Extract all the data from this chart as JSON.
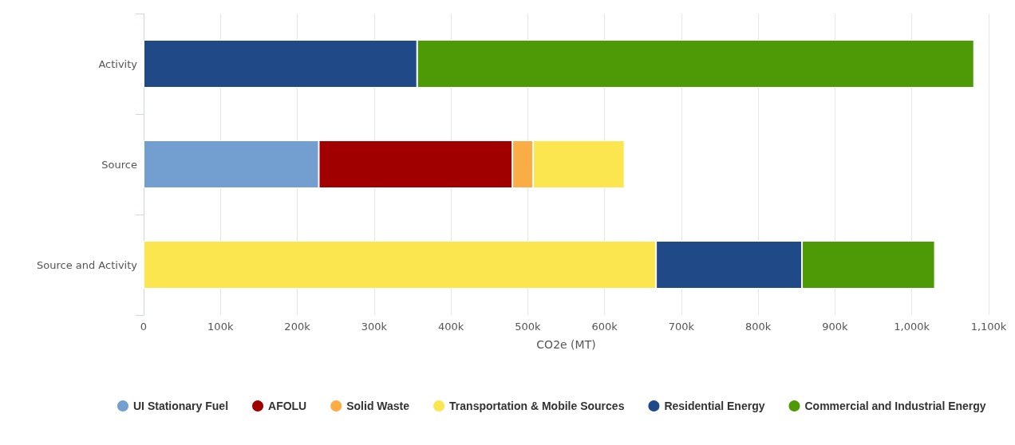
{
  "chart_data": {
    "type": "bar",
    "orientation": "horizontal",
    "stacked": true,
    "xlabel": "CO2e (MT)",
    "categories": [
      "Activity",
      "Source",
      "Source and Activity"
    ],
    "series": [
      {
        "name": "UI Stationary Fuel",
        "color": "#729fcf",
        "values": [
          null,
          228000,
          null
        ]
      },
      {
        "name": "AFOLU",
        "color": "#a00000",
        "values": [
          null,
          252000,
          null
        ]
      },
      {
        "name": "Solid Waste",
        "color": "#fbad45",
        "values": [
          null,
          27000,
          null
        ]
      },
      {
        "name": "Transportation & Mobile Sources",
        "color": "#fce650",
        "values": [
          null,
          119000,
          667000
        ]
      },
      {
        "name": "Residential Energy",
        "color": "#204a87",
        "values": [
          356000,
          null,
          190000
        ]
      },
      {
        "name": "Commercial and Industrial Energy",
        "color": "#4e9a06",
        "values": [
          725000,
          null,
          173000
        ]
      }
    ],
    "xlim": [
      0,
      1100000
    ],
    "xticks": [
      0,
      {
        "value": 100000,
        "label": "100k"
      },
      {
        "value": 200000,
        "label": "200k"
      },
      {
        "value": 300000,
        "label": "300k"
      },
      {
        "value": 400000,
        "label": "400k"
      },
      {
        "value": 500000,
        "label": "500k"
      },
      {
        "value": 600000,
        "label": "600k"
      },
      {
        "value": 700000,
        "label": "700k"
      },
      {
        "value": 800000,
        "label": "800k"
      },
      {
        "value": 900000,
        "label": "900k"
      },
      {
        "value": 1000000,
        "label": "1,000k"
      },
      {
        "value": 1100000,
        "label": "1,100k"
      }
    ],
    "grid": "x",
    "legend": "bottom"
  }
}
